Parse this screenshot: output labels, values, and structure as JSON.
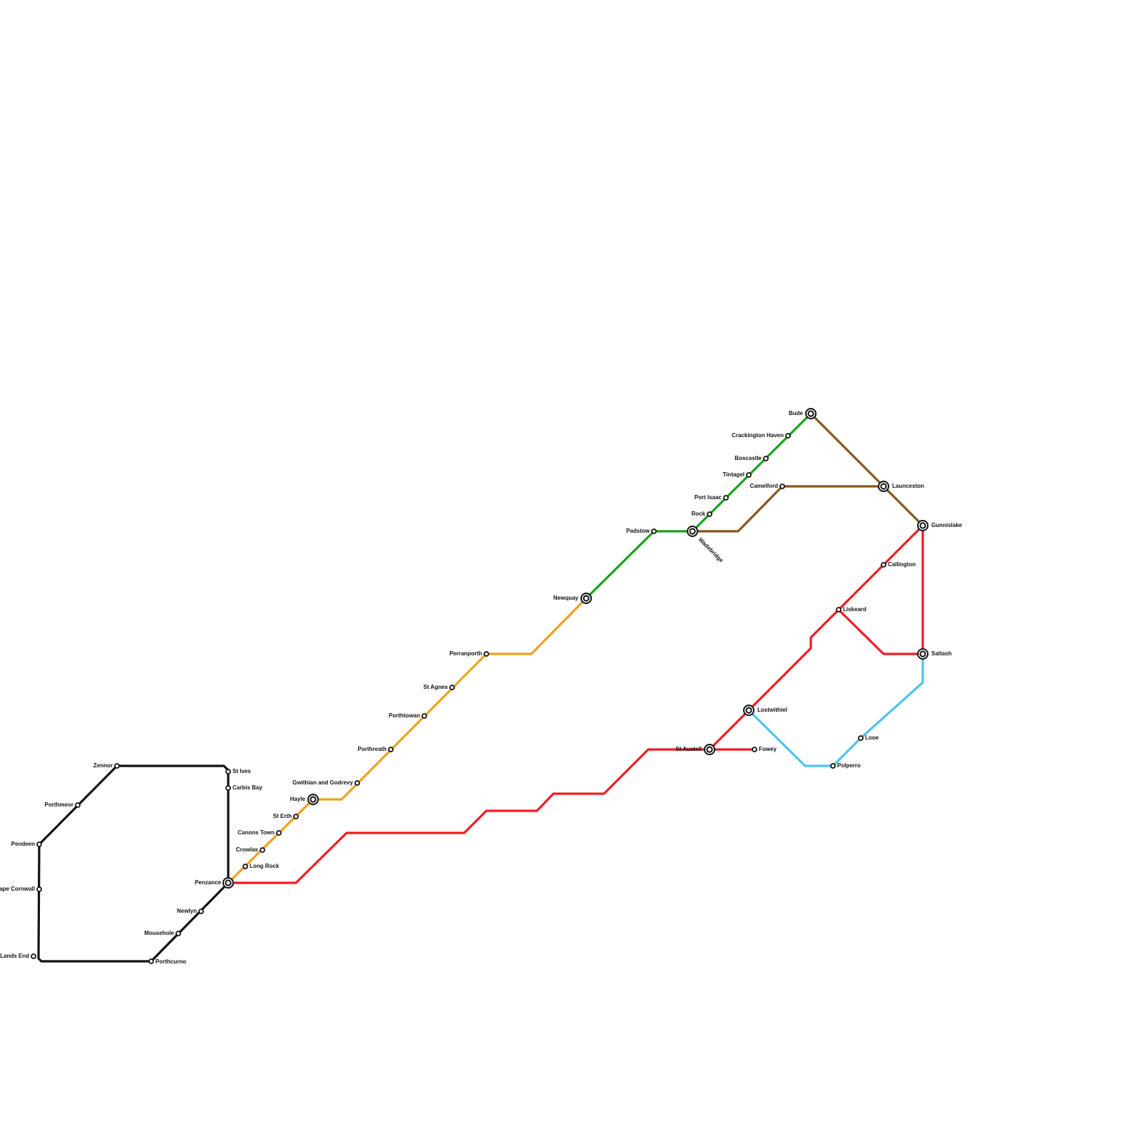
{
  "colors": {
    "black": "#111111",
    "orange": "#f0a01a",
    "green": "#16a11d",
    "brown": "#87561b",
    "red": "#ee1c22",
    "blue": "#4dc3ee"
  },
  "lines": [
    {
      "id": "black-line",
      "color": "#111111"
    },
    {
      "id": "orange-line",
      "color": "#f0a01a"
    },
    {
      "id": "green-line",
      "color": "#16a11d"
    },
    {
      "id": "brown-line",
      "color": "#87561b"
    },
    {
      "id": "red-line",
      "color": "#ee1c22"
    },
    {
      "id": "blue-line",
      "color": "#4dc3ee"
    }
  ],
  "stations": [
    {
      "id": "zennor",
      "name": "Zennor",
      "type": "stop"
    },
    {
      "id": "porthmeor",
      "name": "Porthmeor",
      "type": "stop"
    },
    {
      "id": "pendeen",
      "name": "Pendeen",
      "type": "stop"
    },
    {
      "id": "cape-cornwall",
      "name": "Cape Cornwall",
      "type": "stop"
    },
    {
      "id": "lands-end",
      "name": "Lands End",
      "type": "stop"
    },
    {
      "id": "porthcurno",
      "name": "Porthcurno",
      "type": "stop"
    },
    {
      "id": "mousehole",
      "name": "Mousehole",
      "type": "stop"
    },
    {
      "id": "newlyn",
      "name": "Newlyn",
      "type": "stop"
    },
    {
      "id": "penzance",
      "name": "Penzance",
      "type": "interchange"
    },
    {
      "id": "st-ives",
      "name": "St Ives",
      "type": "stop"
    },
    {
      "id": "carbis-bay",
      "name": "Carbis Bay",
      "type": "stop"
    },
    {
      "id": "long-rock",
      "name": "Long Rock",
      "type": "stop"
    },
    {
      "id": "crowlas",
      "name": "Crowlas",
      "type": "stop"
    },
    {
      "id": "canons-town",
      "name": "Canons Town",
      "type": "stop"
    },
    {
      "id": "st-erth",
      "name": "St Erth",
      "type": "stop"
    },
    {
      "id": "hayle",
      "name": "Hayle",
      "type": "interchange"
    },
    {
      "id": "gwithian",
      "name": "Gwithian and Godrevy",
      "type": "stop"
    },
    {
      "id": "porthreath",
      "name": "Porthreath",
      "type": "stop"
    },
    {
      "id": "porthtowan",
      "name": "Porthtowan",
      "type": "stop"
    },
    {
      "id": "st-agnes",
      "name": "St Agnes",
      "type": "stop"
    },
    {
      "id": "perranporth",
      "name": "Perranporth",
      "type": "stop"
    },
    {
      "id": "newquay",
      "name": "Newquay",
      "type": "interchange"
    },
    {
      "id": "padstow",
      "name": "Padstow",
      "type": "stop"
    },
    {
      "id": "wadebridge",
      "name": "Wadebridge",
      "type": "interchange"
    },
    {
      "id": "rock",
      "name": "Rock",
      "type": "stop"
    },
    {
      "id": "port-isaac",
      "name": "Port Isaac",
      "type": "stop"
    },
    {
      "id": "tintagel",
      "name": "Tintagel",
      "type": "stop"
    },
    {
      "id": "boscastle",
      "name": "Boscastle",
      "type": "stop"
    },
    {
      "id": "crackington-haven",
      "name": "Crackington Haven",
      "type": "stop"
    },
    {
      "id": "bude",
      "name": "Bude",
      "type": "interchange"
    },
    {
      "id": "camelford",
      "name": "Camelford",
      "type": "stop"
    },
    {
      "id": "launceston",
      "name": "Launceston",
      "type": "interchange"
    },
    {
      "id": "gunnislake",
      "name": "Gunnislake",
      "type": "interchange"
    },
    {
      "id": "callington",
      "name": "Callington",
      "type": "stop"
    },
    {
      "id": "liskeard",
      "name": "Liskeard",
      "type": "stop"
    },
    {
      "id": "saltash",
      "name": "Saltash",
      "type": "interchange"
    },
    {
      "id": "lostwithiel",
      "name": "Lostwithiel",
      "type": "interchange"
    },
    {
      "id": "st-austell",
      "name": "St Austell",
      "type": "interchange"
    },
    {
      "id": "fowey",
      "name": "Fowey",
      "type": "stop"
    },
    {
      "id": "looe",
      "name": "Looe",
      "type": "stop"
    },
    {
      "id": "polperro",
      "name": "Polperro",
      "type": "stop"
    }
  ]
}
